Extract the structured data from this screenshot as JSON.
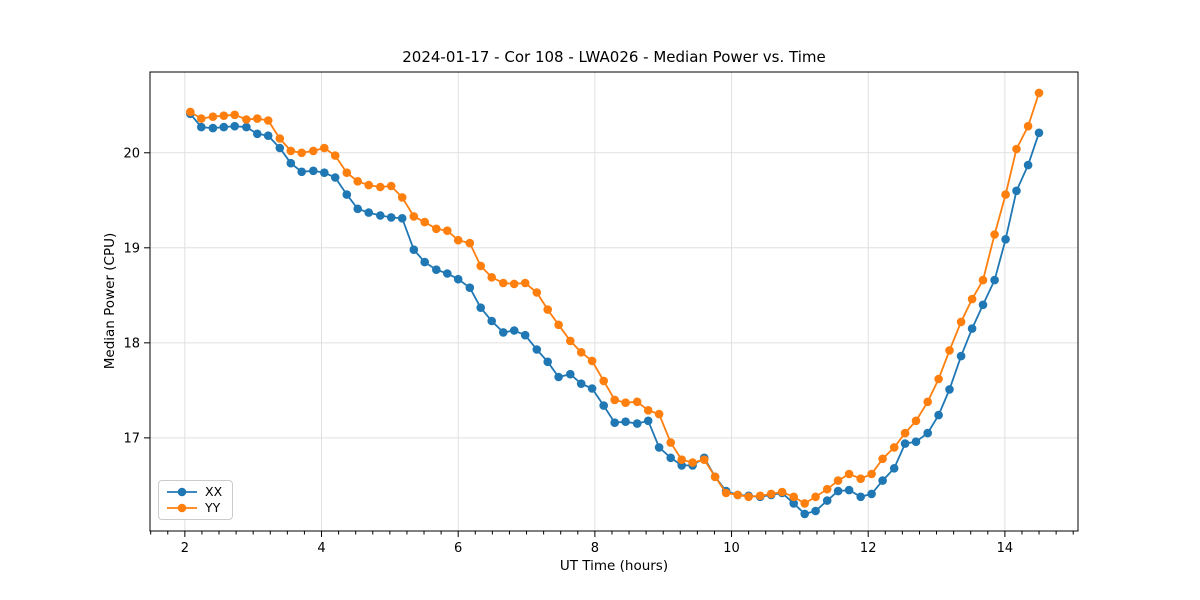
{
  "title": "2024-01-17 - Cor 108 - LWA026 - Median Power vs. Time",
  "colors": {
    "series_xx": "#1f77b4",
    "series_yy": "#ff7f0e",
    "grid": "#e0e0e0",
    "spine": "#000000",
    "legend_border": "#cbcbcb"
  },
  "chart_data": {
    "type": "line",
    "title": "2024-01-17 - Cor 108 - LWA026 - Median Power vs. Time",
    "xlabel": "UT Time (hours)",
    "ylabel": "Median Power (CPU)",
    "xlim": [
      1.49,
      15.07
    ],
    "ylim": [
      16.02,
      20.85
    ],
    "x_ticks": [
      2,
      4,
      6,
      8,
      10,
      12,
      14
    ],
    "x_tick_labels": [
      "2",
      "4",
      "6",
      "8",
      "10",
      "12",
      "14"
    ],
    "y_ticks": [
      17,
      18,
      19,
      20
    ],
    "y_tick_labels": [
      "17",
      "18",
      "19",
      "20"
    ],
    "x_minor_step": 0.25,
    "grid": true,
    "legend_position": "lower left",
    "marker": "circle",
    "x": [
      2.08,
      2.24,
      2.41,
      2.57,
      2.73,
      2.9,
      3.06,
      3.22,
      3.39,
      3.55,
      3.71,
      3.88,
      4.04,
      4.2,
      4.37,
      4.53,
      4.69,
      4.86,
      5.02,
      5.18,
      5.35,
      5.51,
      5.68,
      5.84,
      6.0,
      6.17,
      6.33,
      6.49,
      6.66,
      6.82,
      6.98,
      7.15,
      7.31,
      7.47,
      7.64,
      7.8,
      7.96,
      8.13,
      8.29,
      8.45,
      8.62,
      8.78,
      8.94,
      9.11,
      9.27,
      9.43,
      9.6,
      9.76,
      9.92,
      10.09,
      10.25,
      10.42,
      10.58,
      10.74,
      10.91,
      11.07,
      11.23,
      11.4,
      11.56,
      11.72,
      11.89,
      12.05,
      12.21,
      12.38,
      12.54,
      12.7,
      12.87,
      13.03,
      13.19,
      13.36,
      13.52,
      13.68,
      13.85,
      14.01,
      14.17,
      14.34,
      14.5
    ],
    "series": [
      {
        "name": "XX",
        "color": "#1f77b4",
        "values": [
          20.41,
          20.27,
          20.26,
          20.27,
          20.28,
          20.27,
          20.2,
          20.18,
          20.05,
          19.89,
          19.8,
          19.81,
          19.79,
          19.74,
          19.56,
          19.41,
          19.37,
          19.34,
          19.32,
          19.31,
          18.98,
          18.85,
          18.77,
          18.73,
          18.67,
          18.58,
          18.37,
          18.23,
          18.11,
          18.13,
          18.08,
          17.93,
          17.8,
          17.64,
          17.67,
          17.57,
          17.52,
          17.34,
          17.16,
          17.17,
          17.15,
          17.18,
          16.9,
          16.79,
          16.71,
          16.71,
          16.79,
          16.59,
          16.44,
          16.4,
          16.39,
          16.38,
          16.4,
          16.42,
          16.31,
          16.2,
          16.23,
          16.34,
          16.44,
          16.45,
          16.38,
          16.41,
          16.55,
          16.68,
          16.94,
          16.96,
          17.05,
          17.24,
          17.51,
          17.86,
          18.15,
          18.4,
          18.66,
          19.09,
          19.6,
          19.87,
          20.21
        ]
      },
      {
        "name": "YY",
        "color": "#ff7f0e",
        "values": [
          20.43,
          20.36,
          20.38,
          20.39,
          20.4,
          20.35,
          20.36,
          20.34,
          20.15,
          20.02,
          20.0,
          20.02,
          20.05,
          19.97,
          19.79,
          19.7,
          19.66,
          19.64,
          19.65,
          19.53,
          19.33,
          19.27,
          19.2,
          19.18,
          19.08,
          19.05,
          18.81,
          18.69,
          18.63,
          18.62,
          18.63,
          18.53,
          18.35,
          18.19,
          18.02,
          17.9,
          17.81,
          17.6,
          17.4,
          17.37,
          17.38,
          17.29,
          17.25,
          16.95,
          16.77,
          16.74,
          16.77,
          16.59,
          16.42,
          16.4,
          16.38,
          16.39,
          16.41,
          16.43,
          16.38,
          16.31,
          16.38,
          16.46,
          16.55,
          16.62,
          16.57,
          16.62,
          16.78,
          16.9,
          17.05,
          17.18,
          17.38,
          17.62,
          17.92,
          18.22,
          18.46,
          18.66,
          19.14,
          19.56,
          20.04,
          20.28,
          20.63
        ]
      }
    ]
  }
}
